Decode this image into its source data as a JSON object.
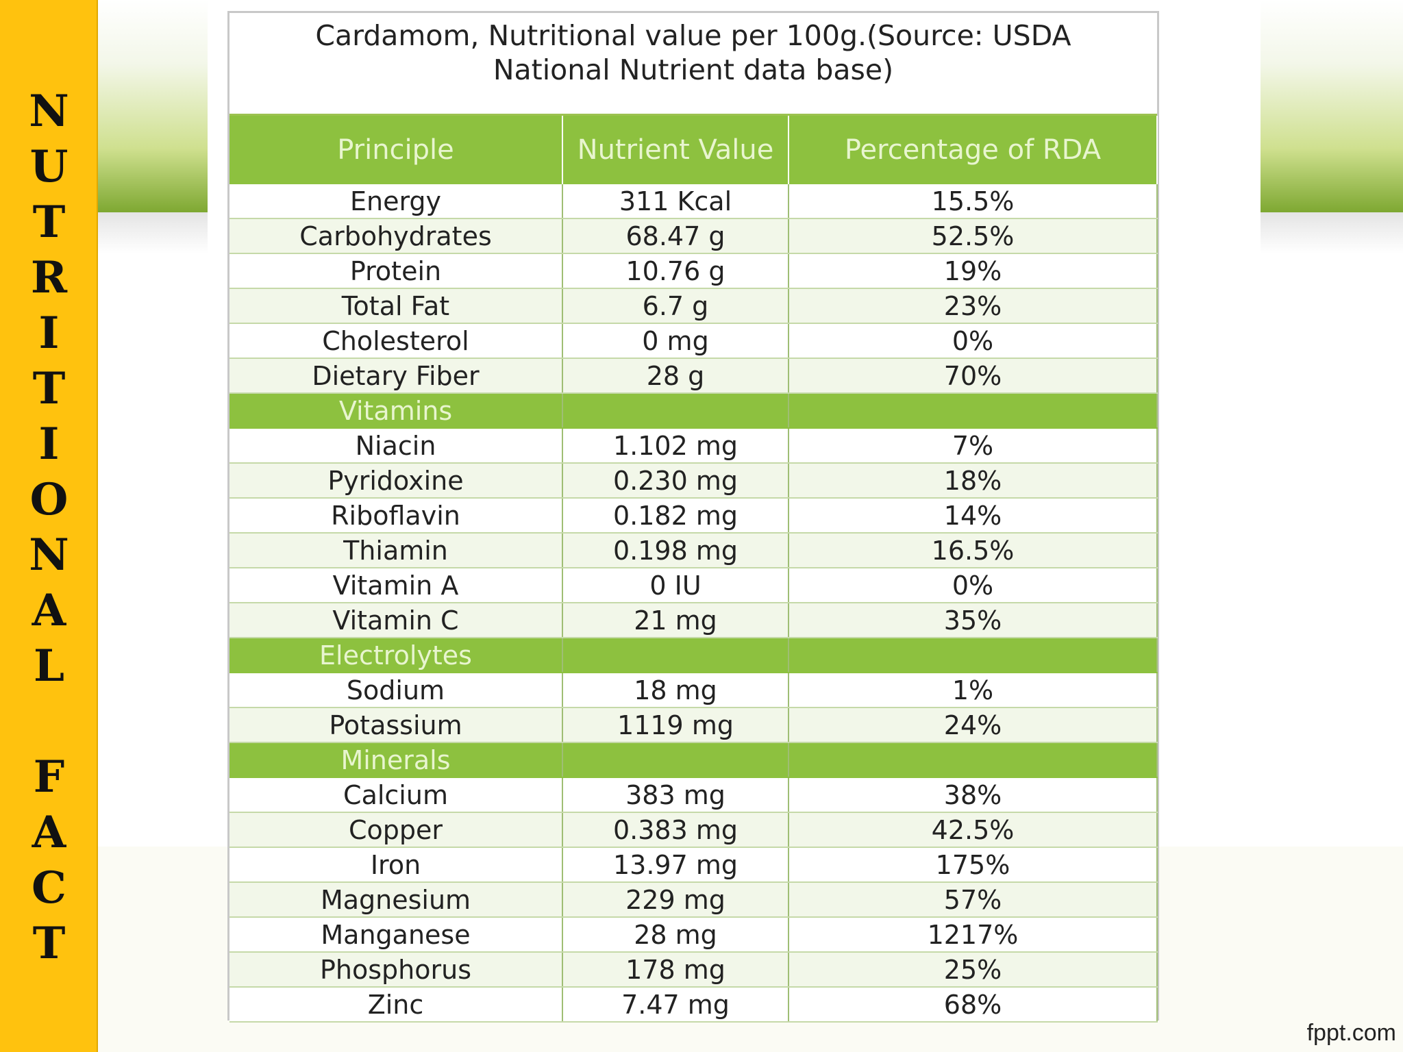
{
  "side": {
    "letters": [
      "N",
      "U",
      "T",
      "R",
      "I",
      "T",
      "I",
      "O",
      "N",
      "A",
      "L",
      " ",
      "F",
      "A",
      "C",
      "T"
    ]
  },
  "table": {
    "title": "Cardamom, Nutritional value per 100g.(Source: USDA National Nutrient data base)",
    "headers": [
      "Principle",
      "Nutrient Value",
      "Percentage of RDA"
    ],
    "rows": [
      {
        "type": "data",
        "principle": "Energy",
        "value": "311 Kcal",
        "rda": "15.5%"
      },
      {
        "type": "data",
        "principle": "Carbohydrates",
        "value": "68.47 g",
        "rda": "52.5%"
      },
      {
        "type": "data",
        "principle": "Protein",
        "value": "10.76 g",
        "rda": "19%"
      },
      {
        "type": "data",
        "principle": "Total Fat",
        "value": "6.7 g",
        "rda": "23%"
      },
      {
        "type": "data",
        "principle": "Cholesterol",
        "value": "0 mg",
        "rda": "0%"
      },
      {
        "type": "data",
        "principle": "Dietary Fiber",
        "value": "28 g",
        "rda": "70%"
      },
      {
        "type": "section",
        "principle": "Vitamins"
      },
      {
        "type": "data",
        "principle": "Niacin",
        "value": "1.102 mg",
        "rda": "7%"
      },
      {
        "type": "data",
        "principle": "Pyridoxine",
        "value": "0.230 mg",
        "rda": "18%"
      },
      {
        "type": "data",
        "principle": "Riboflavin",
        "value": "0.182 mg",
        "rda": "14%"
      },
      {
        "type": "data",
        "principle": "Thiamin",
        "value": "0.198 mg",
        "rda": "16.5%"
      },
      {
        "type": "data",
        "principle": "Vitamin A",
        "value": "0 IU",
        "rda": "0%"
      },
      {
        "type": "data",
        "principle": "Vitamin C",
        "value": "21 mg",
        "rda": "35%"
      },
      {
        "type": "section",
        "principle": "Electrolytes"
      },
      {
        "type": "data",
        "principle": "Sodium",
        "value": "18 mg",
        "rda": "1%"
      },
      {
        "type": "data",
        "principle": "Potassium",
        "value": "1119 mg",
        "rda": "24%"
      },
      {
        "type": "section",
        "principle": "Minerals"
      },
      {
        "type": "data",
        "principle": "Calcium",
        "value": "383 mg",
        "rda": "38%"
      },
      {
        "type": "data",
        "principle": "Copper",
        "value": "0.383 mg",
        "rda": "42.5%"
      },
      {
        "type": "data",
        "principle": "Iron",
        "value": "13.97 mg",
        "rda": "175%"
      },
      {
        "type": "data",
        "principle": "Magnesium",
        "value": "229 mg",
        "rda": "57%"
      },
      {
        "type": "data",
        "principle": "Manganese",
        "value": "28 mg",
        "rda": "1217%"
      },
      {
        "type": "data",
        "principle": "Phosphorus",
        "value": "178 mg",
        "rda": "25%"
      },
      {
        "type": "data",
        "principle": "Zinc",
        "value": "7.47 mg",
        "rda": "68%"
      }
    ]
  },
  "footer": {
    "brand": "fppt.com"
  },
  "colors": {
    "accent_green": "#8dc13f",
    "sidebar_yellow": "#ffc20e"
  }
}
